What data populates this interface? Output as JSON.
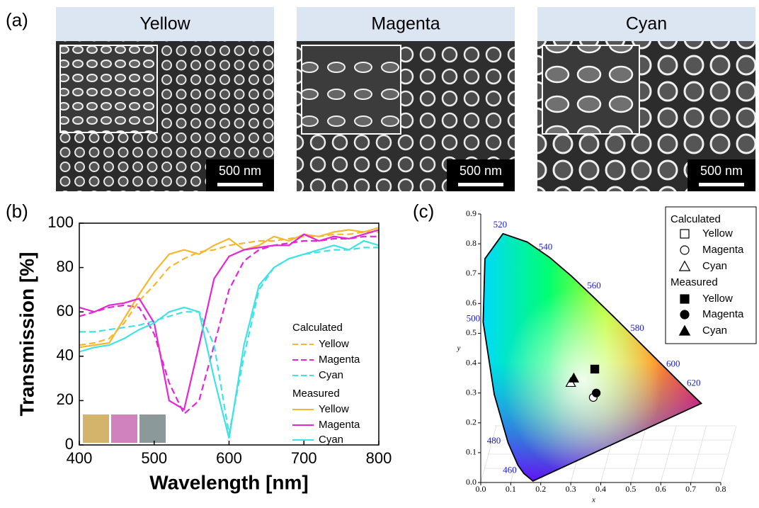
{
  "panel_a": {
    "label": "(a)",
    "panels": [
      {
        "title": "Yellow",
        "scale_bar": "500 nm"
      },
      {
        "title": "Magenta",
        "scale_bar": "500 nm"
      },
      {
        "title": "Cyan",
        "scale_bar": "500 nm"
      }
    ]
  },
  "chart_data": [
    {
      "type": "line",
      "panel_label": "(b)",
      "xlabel": "Wavelength [nm]",
      "ylabel": "Transmission [%]",
      "x": [
        400,
        420,
        440,
        460,
        480,
        500,
        520,
        540,
        560,
        580,
        600,
        620,
        640,
        660,
        680,
        700,
        720,
        740,
        760,
        780,
        800
      ],
      "xlim": [
        400,
        800
      ],
      "ylim": [
        0,
        100
      ],
      "xticks": [
        400,
        500,
        600,
        700,
        800
      ],
      "yticks": [
        0,
        20,
        40,
        60,
        80,
        100
      ],
      "legend_groups": [
        "Calculated",
        "Measured"
      ],
      "series": [
        {
          "name": "Yellow",
          "color": "#f5b730",
          "dashed": true,
          "values": [
            45,
            46,
            48,
            55,
            65,
            72,
            80,
            84,
            87,
            88,
            90,
            91,
            92,
            92,
            93,
            94,
            94,
            95,
            95,
            96,
            96
          ]
        },
        {
          "name": "Magenta",
          "color": "#e526d6",
          "dashed": true,
          "values": [
            58,
            60,
            62,
            63,
            62,
            50,
            28,
            14,
            20,
            45,
            70,
            83,
            88,
            90,
            91,
            92,
            92,
            93,
            93,
            94,
            94
          ]
        },
        {
          "name": "Cyan",
          "color": "#3fe3e6",
          "dashed": true,
          "values": [
            51,
            51,
            52,
            53,
            54,
            56,
            58,
            60,
            60,
            45,
            5,
            40,
            70,
            80,
            84,
            86,
            87,
            88,
            88,
            89,
            89
          ]
        },
        {
          "name": "Yellow",
          "color": "#f5b730",
          "dashed": false,
          "values": [
            44,
            45,
            46,
            57,
            68,
            78,
            86,
            88,
            86,
            90,
            93,
            88,
            90,
            94,
            92,
            95,
            94,
            96,
            97,
            96,
            98
          ]
        },
        {
          "name": "Magenta",
          "color": "#e526d6",
          "dashed": false,
          "values": [
            62,
            60,
            63,
            64,
            66,
            55,
            20,
            16,
            45,
            75,
            85,
            88,
            89,
            90,
            90,
            95,
            92,
            94,
            93,
            95,
            97
          ]
        },
        {
          "name": "Cyan",
          "color": "#3fe3e6",
          "dashed": false,
          "values": [
            42,
            44,
            45,
            48,
            52,
            55,
            60,
            62,
            60,
            30,
            3,
            45,
            72,
            80,
            84,
            86,
            88,
            90,
            88,
            92,
            90
          ]
        }
      ]
    },
    {
      "type": "scatter",
      "panel_label": "(c)",
      "xlabel": "x",
      "ylabel": "y",
      "xlim": [
        0,
        0.8
      ],
      "ylim": [
        0,
        0.9
      ],
      "xticks": [
        {
          "value": 0,
          "label": "0.0"
        },
        0.1,
        0.2,
        0.3,
        0.4,
        0.5,
        0.6,
        0.7,
        0.8
      ],
      "yticks": [
        {
          "value": 0,
          "label": "0.0"
        },
        0.1,
        0.2,
        0.3,
        0.4,
        0.5,
        0.6,
        0.7,
        0.8,
        0.9
      ],
      "locus_labels": [
        "460",
        "480",
        "500",
        "520",
        "540",
        "560",
        "580",
        "600",
        "620"
      ],
      "legend_groups": [
        "Calculated",
        "Measured"
      ],
      "series": [
        {
          "name": "Yellow",
          "marker": "square",
          "filled": false,
          "x": [
            0.38
          ],
          "values": [
            0.38
          ]
        },
        {
          "name": "Magenta",
          "marker": "circle",
          "filled": false,
          "x": [
            0.375
          ],
          "values": [
            0.285
          ]
        },
        {
          "name": "Cyan",
          "marker": "triangle",
          "filled": false,
          "x": [
            0.3
          ],
          "values": [
            0.335
          ]
        },
        {
          "name": "Yellow",
          "marker": "square",
          "filled": true,
          "x": [
            0.38
          ],
          "values": [
            0.38
          ]
        },
        {
          "name": "Magenta",
          "marker": "circle",
          "filled": true,
          "x": [
            0.385
          ],
          "values": [
            0.3
          ]
        },
        {
          "name": "Cyan",
          "marker": "triangle",
          "filled": true,
          "x": [
            0.31
          ],
          "values": [
            0.35
          ]
        }
      ]
    }
  ]
}
